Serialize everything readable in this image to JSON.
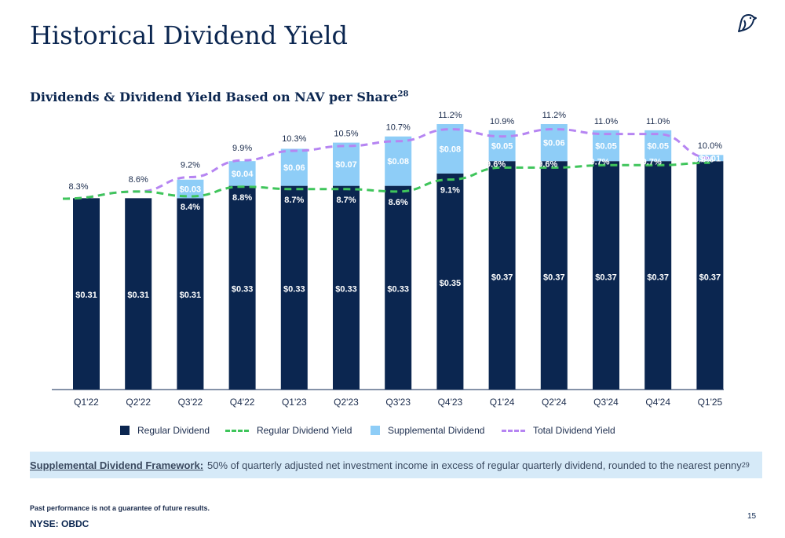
{
  "page": {
    "title": "Historical Dividend Yield",
    "subtitle": "Dividends & Dividend Yield Based on NAV per Share",
    "subtitle_footnote": "28",
    "framework_label": "Supplemental Dividend Framework:",
    "framework_text": "50% of quarterly adjusted net investment income in excess of regular quarterly dividend, rounded to the nearest penny",
    "framework_footnote": "29",
    "disclaimer": "Past performance is not a guarantee of future results.",
    "ticker": "NYSE: OBDC",
    "page_number": "15",
    "logo_icon": "bird-logo-icon"
  },
  "legend": {
    "regular_dividend": "Regular Dividend",
    "regular_yield": "Regular Dividend Yield",
    "supplemental_dividend": "Supplemental Dividend",
    "total_yield": "Total Dividend Yield"
  },
  "colors": {
    "regular": "#0b2650",
    "supplemental": "#8ecdf7",
    "regular_yield": "#3fc55b",
    "total_yield": "#b685f2",
    "framework_bg": "#d6eaf8"
  },
  "chart_data": {
    "type": "bar",
    "stacked": true,
    "categories": [
      "Q1'22",
      "Q2'22",
      "Q3'22",
      "Q4'22",
      "Q1'23",
      "Q2'23",
      "Q3'23",
      "Q4'23",
      "Q1'24",
      "Q2'24",
      "Q3'24",
      "Q4'24",
      "Q1'25"
    ],
    "series": [
      {
        "name": "Regular Dividend",
        "type": "bar",
        "values": [
          0.31,
          0.31,
          0.31,
          0.33,
          0.33,
          0.33,
          0.33,
          0.35,
          0.37,
          0.37,
          0.37,
          0.37,
          0.37
        ],
        "labels": [
          "$0.31",
          "$0.31",
          "$0.31",
          "$0.33",
          "$0.33",
          "$0.33",
          "$0.33",
          "$0.35",
          "$0.37",
          "$0.37",
          "$0.37",
          "$0.37",
          "$0.37"
        ]
      },
      {
        "name": "Supplemental Dividend",
        "type": "bar",
        "values": [
          null,
          null,
          0.03,
          0.04,
          0.06,
          0.07,
          0.08,
          0.08,
          0.05,
          0.06,
          0.05,
          0.05,
          0.01
        ],
        "labels": [
          "",
          "",
          "$0.03",
          "$0.04",
          "$0.06",
          "$0.07",
          "$0.08",
          "$0.08",
          "$0.05",
          "$0.06",
          "$0.05",
          "$0.05",
          "$0.01"
        ]
      },
      {
        "name": "Regular Dividend Yield",
        "type": "line",
        "values": [
          8.3,
          8.6,
          8.4,
          8.8,
          8.7,
          8.7,
          8.6,
          9.1,
          9.6,
          9.6,
          9.7,
          9.7,
          9.8
        ],
        "labels": [
          "",
          "",
          "8.4%",
          "8.8%",
          "8.7%",
          "8.7%",
          "8.6%",
          "9.1%",
          "9.6%",
          "9.6%",
          "9.7%",
          "9.7%",
          "9.8%"
        ]
      },
      {
        "name": "Total Dividend Yield",
        "type": "line",
        "values": [
          8.3,
          8.6,
          9.2,
          9.9,
          10.3,
          10.5,
          10.7,
          11.2,
          10.9,
          11.2,
          11.0,
          11.0,
          10.0
        ],
        "labels": [
          "8.3%",
          "8.6%",
          "9.2%",
          "9.9%",
          "10.3%",
          "10.5%",
          "10.7%",
          "11.2%",
          "10.9%",
          "11.2%",
          "11.0%",
          "11.0%",
          "10.0%"
        ]
      }
    ],
    "legend_position": "bottom",
    "grid": false
  }
}
